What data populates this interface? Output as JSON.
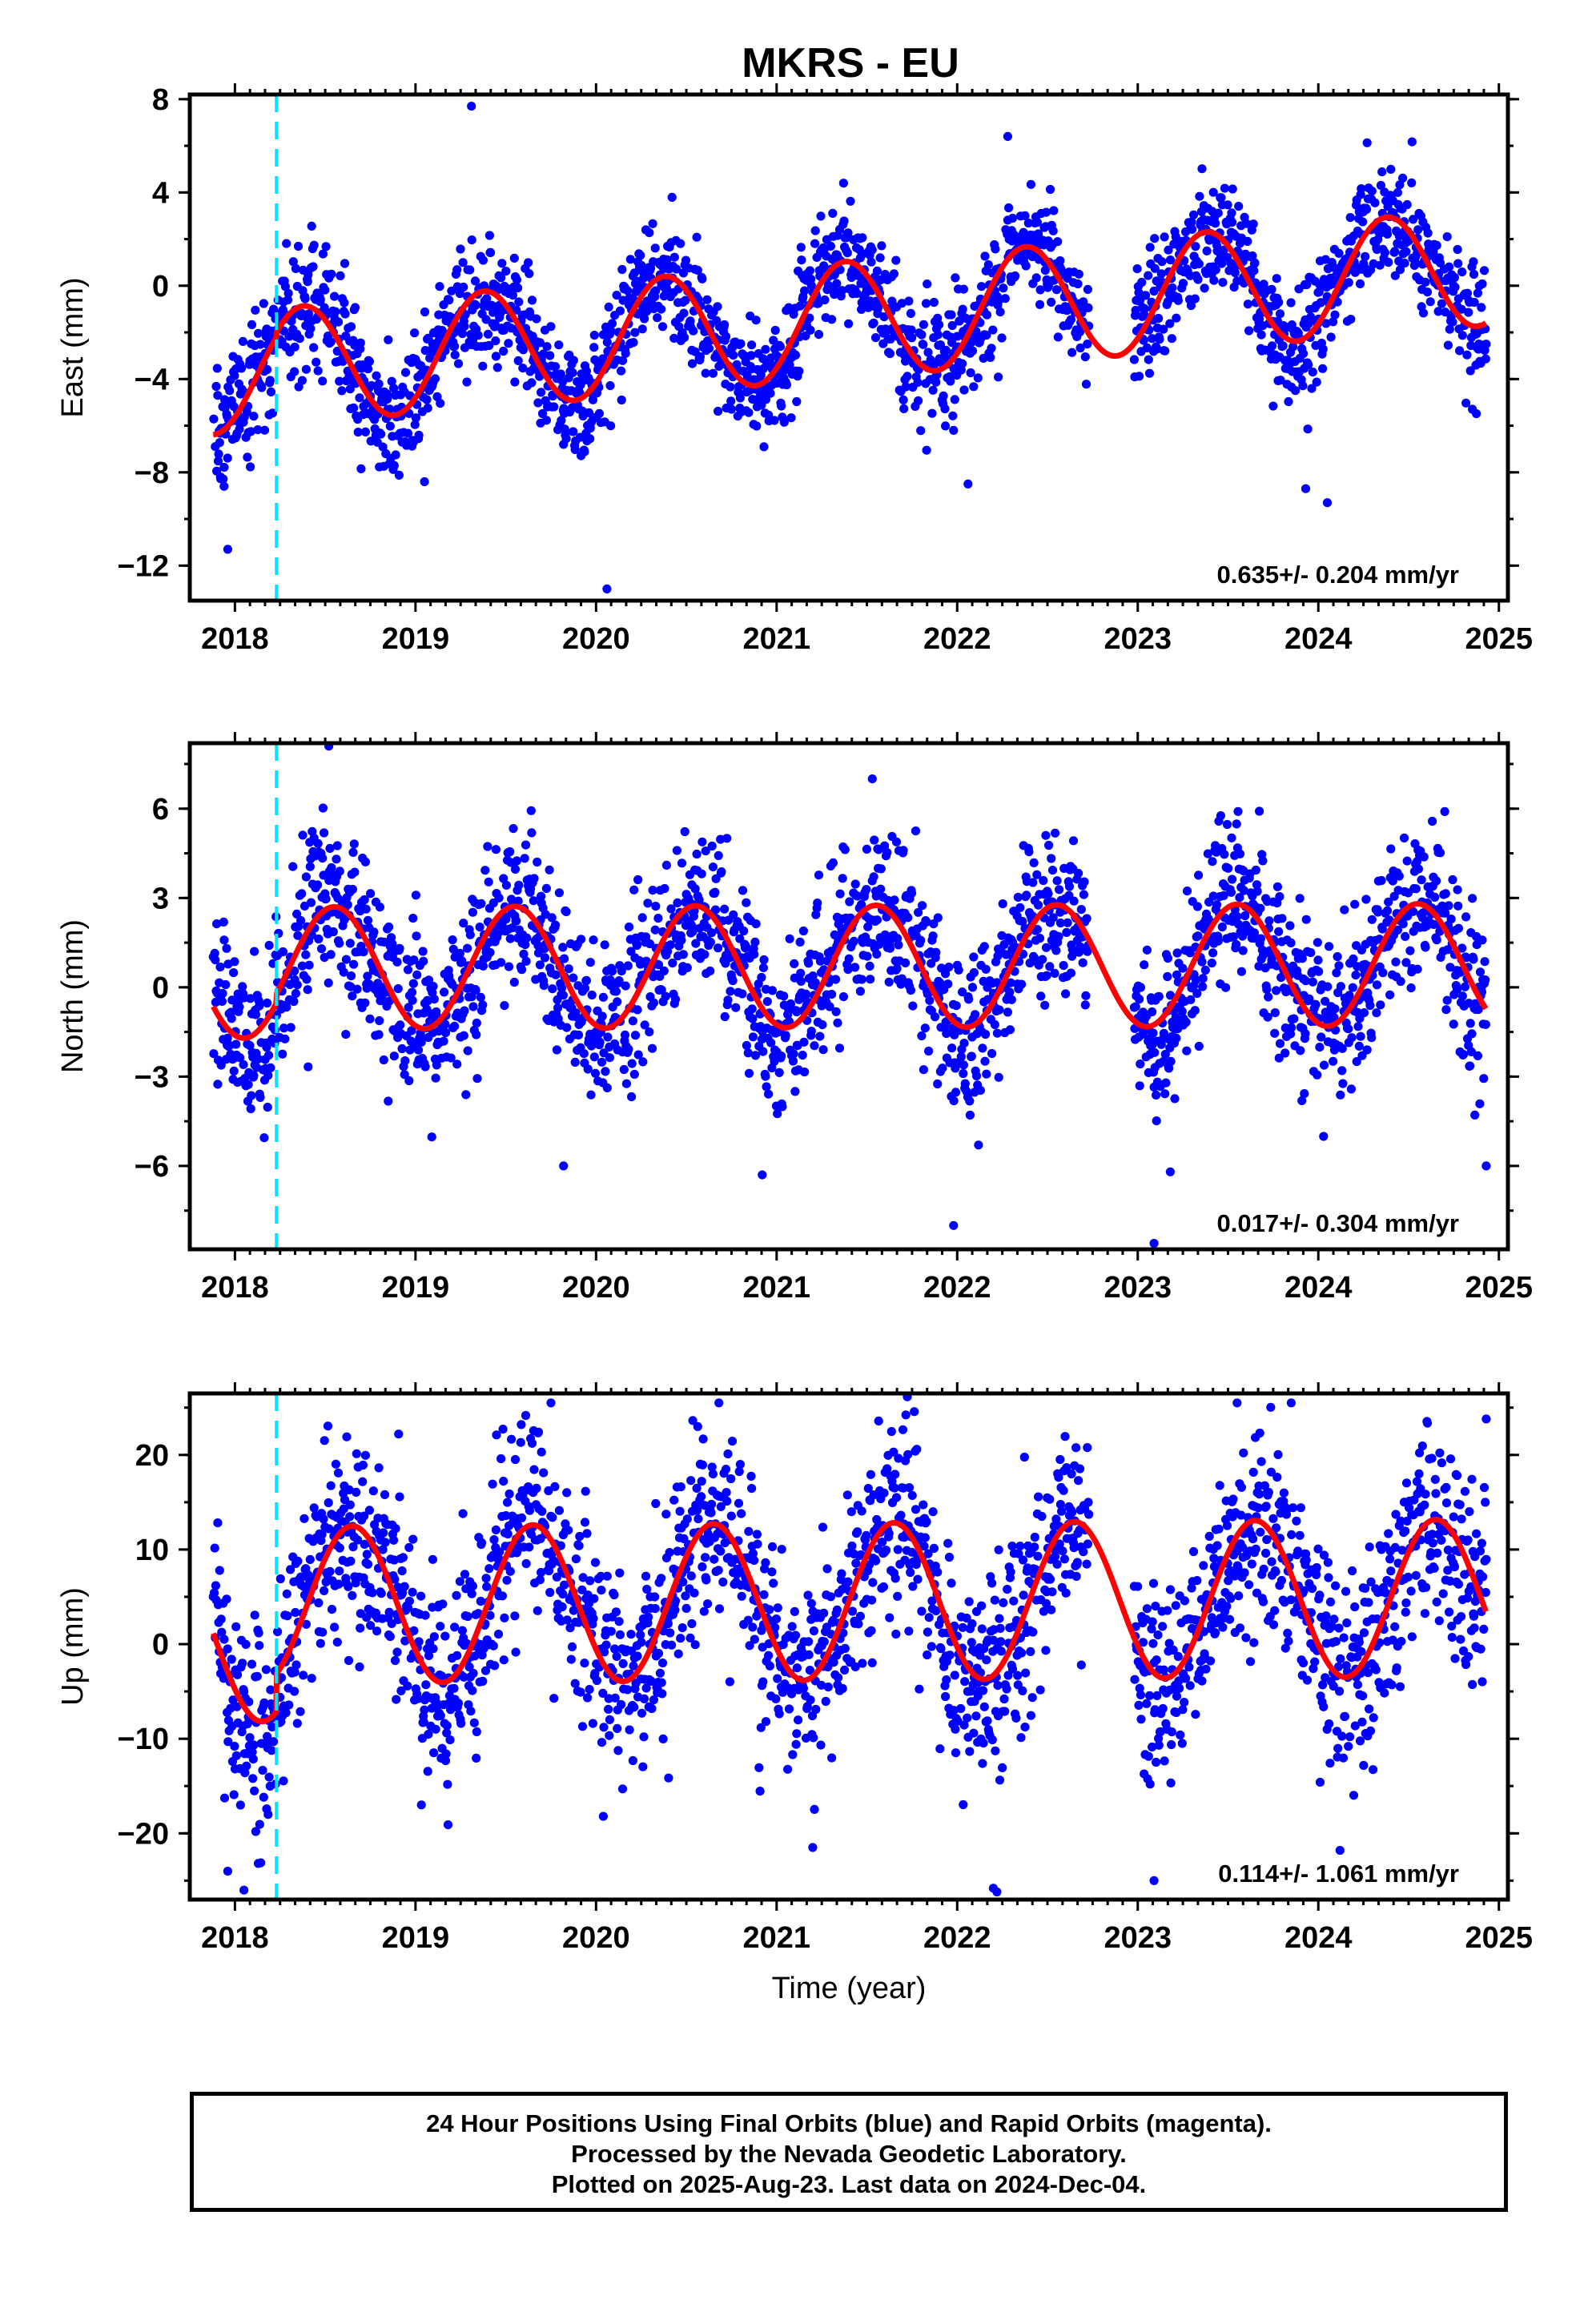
{
  "title": "MKRS - EU",
  "footer": {
    "line1": "24 Hour Positions Using Final Orbits (blue) and Rapid Orbits (magenta).",
    "line2": "Processed by the Nevada Geodetic Laboratory.",
    "line3": "Plotted on 2025-Aug-23. Last data on 2024-Dec-04."
  },
  "chart_data": [
    {
      "type": "scatter",
      "component": "east",
      "ylabel": "East (mm)",
      "xlabel": "",
      "xlim": [
        2017.75,
        2025.05
      ],
      "ylim": [
        -13.5,
        8.2
      ],
      "yticks": [
        8,
        4,
        0,
        -4,
        -8,
        -12
      ],
      "xticks": [
        2018,
        2019,
        2020,
        2021,
        2022,
        2023,
        2024,
        2025
      ],
      "rate_text": "0.635+/- 0.204 mm/yr",
      "event_line_x": 2018.23,
      "model": {
        "offset": -1.65,
        "trend": 0.635,
        "amplitude": 2.5,
        "phase_year": 2018.38,
        "step_at": 2018.23,
        "step": 0.2
      },
      "data_range": [
        2017.88,
        2024.93
      ],
      "gap": [
        2022.73,
        2022.98
      ],
      "noise_sd": 1.25,
      "outliers": [
        {
          "x": 2017.96,
          "y": -11.3
        },
        {
          "x": 2017.94,
          "y": -8.6
        },
        {
          "x": 2017.92,
          "y": -8.2
        },
        {
          "x": 2019.31,
          "y": 7.7
        },
        {
          "x": 2020.06,
          "y": -13.0
        },
        {
          "x": 2022.06,
          "y": -8.5
        },
        {
          "x": 2023.93,
          "y": -8.7
        },
        {
          "x": 2024.05,
          "y": -9.3
        },
        {
          "x": 2019.05,
          "y": -8.4
        },
        {
          "x": 2021.98,
          "y": -6.2
        },
        {
          "x": 2019.82,
          "y": -6.8
        },
        {
          "x": 2022.28,
          "y": 6.4
        }
      ]
    },
    {
      "type": "scatter",
      "component": "north",
      "ylabel": "North (mm)",
      "xlabel": "",
      "xlim": [
        2017.75,
        2025.05
      ],
      "ylim": [
        -8.8,
        8.2
      ],
      "yticks": [
        6,
        3,
        0,
        -3,
        -6
      ],
      "xticks": [
        2018,
        2019,
        2020,
        2021,
        2022,
        2023,
        2024,
        2025
      ],
      "rate_text": "0.017+/- 0.304 mm/yr",
      "event_line_x": 2018.23,
      "model": {
        "offset": 0.4,
        "trend": 0.017,
        "amplitude": 2.05,
        "phase_year": 2018.55,
        "step_at": 2018.23,
        "step": 0.3
      },
      "data_range": [
        2017.88,
        2024.93
      ],
      "gap": [
        2022.73,
        2022.98
      ],
      "noise_sd": 1.35,
      "outliers": [
        {
          "x": 2018.52,
          "y": 8.1
        },
        {
          "x": 2021.98,
          "y": -8.0
        },
        {
          "x": 2023.09,
          "y": -8.6
        },
        {
          "x": 2021.53,
          "y": 7.0
        },
        {
          "x": 2020.92,
          "y": -6.3
        },
        {
          "x": 2019.82,
          "y": -6.0
        },
        {
          "x": 2023.18,
          "y": -6.2
        },
        {
          "x": 2024.93,
          "y": -6.0
        }
      ]
    },
    {
      "type": "scatter",
      "component": "up",
      "ylabel": "Up (mm)",
      "xlabel": "Time (year)",
      "xlim": [
        2017.75,
        2025.05
      ],
      "ylim": [
        -27,
        26.5
      ],
      "yticks": [
        20,
        10,
        0,
        -10,
        -20
      ],
      "xticks": [
        2018,
        2019,
        2020,
        2021,
        2022,
        2023,
        2024,
        2025
      ],
      "rate_text": "0.114+/- 1.061 mm/yr",
      "event_line_x": 2018.23,
      "model": {
        "offset": 0.5,
        "trend": 0.114,
        "amplitude": 8.3,
        "phase_year": 2018.65,
        "step_at": 2018.23,
        "step": 4.0
      },
      "data_range": [
        2017.88,
        2024.93
      ],
      "gap": [
        2022.73,
        2022.98
      ],
      "noise_sd": 5.3,
      "outliers": [
        {
          "x": 2019.75,
          "y": 25.5
        },
        {
          "x": 2020.68,
          "y": 25.5
        },
        {
          "x": 2023.55,
          "y": 25.5
        },
        {
          "x": 2023.85,
          "y": 25.5
        },
        {
          "x": 2024.93,
          "y": 23.8
        },
        {
          "x": 2022.2,
          "y": -25.8
        },
        {
          "x": 2022.22,
          "y": -26.2
        },
        {
          "x": 2023.09,
          "y": -25.0
        },
        {
          "x": 2017.96,
          "y": -24.0
        },
        {
          "x": 2018.05,
          "y": -26.0
        },
        {
          "x": 2021.2,
          "y": -21.5
        },
        {
          "x": 2024.12,
          "y": -21.8
        },
        {
          "x": 2023.93,
          "y": -23.3
        }
      ]
    }
  ]
}
